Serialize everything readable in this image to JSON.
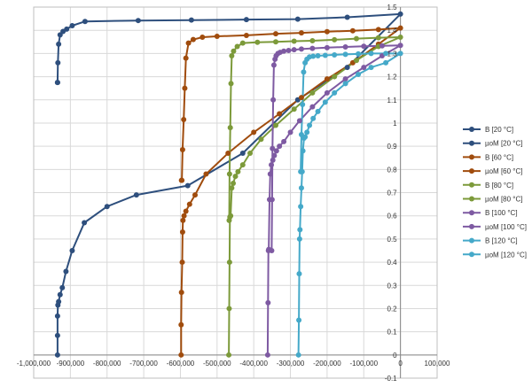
{
  "chart_data": {
    "type": "scatter",
    "title": "",
    "xlabel": "",
    "ylabel": "",
    "xlim": [
      -1000000,
      100000
    ],
    "ylim": [
      -0.1,
      1.5
    ],
    "grid": true,
    "legend_position": "right",
    "x_ticks": [
      "-1,000,000",
      "-900,000",
      "-800,000",
      "-700,000",
      "-600,000",
      "-500,000",
      "-400,000",
      "-300,000",
      "-200,000",
      "-100,000",
      "0",
      "100,000"
    ],
    "y_ticks": [
      "-0.1",
      "0",
      "0.1",
      "0.2",
      "0.3",
      "0.4",
      "0.5",
      "0.6",
      "0.7",
      "0.8",
      "0.9",
      "1",
      "1.1",
      "1.2",
      "1.3",
      "1.4",
      "1.5"
    ],
    "series": [
      {
        "name": "B [20 °C]",
        "color": "#2e4f7d",
        "x": [
          -935000,
          -935000,
          -935000,
          -934000,
          -932000,
          -928000,
          -922000,
          -912000,
          -895000,
          -862000,
          -800000,
          -720000,
          -580000,
          -430000,
          -280000,
          -145000,
          0,
          -145000,
          -280000,
          -420000,
          -570000,
          -715000,
          -860000,
          -895000,
          -910000,
          -920000,
          -928000,
          -932000,
          -934000,
          -935000,
          -935000
        ],
        "y": [
          0,
          0.084,
          0.168,
          0.215,
          0.23,
          0.26,
          0.29,
          0.36,
          0.45,
          0.57,
          0.64,
          0.69,
          0.73,
          0.87,
          1.1,
          1.24,
          1.47,
          1.456,
          1.448,
          1.446,
          1.444,
          1.442,
          1.438,
          1.42,
          1.405,
          1.395,
          1.38,
          1.34,
          1.26,
          1.175,
          1.175
        ]
      },
      {
        "name": "µoM [20 °C]",
        "color": "#2e4f7d",
        "x": [],
        "y": []
      },
      {
        "name": "B [60 °C]",
        "color": "#a04c0d",
        "x": [
          -598000,
          -598000,
          -597000,
          -595000,
          -594000,
          -593000,
          -590000,
          -585000,
          -575000,
          -560000,
          -530000,
          -470000,
          -400000,
          -330000,
          -270000,
          -200000,
          -130000,
          -60000,
          0,
          -60000,
          -130000,
          -200000,
          -270000,
          -340000,
          -420000,
          -500000,
          -540000,
          -565000,
          -578000,
          -585000,
          -588000,
          -591000,
          -594000,
          -596000,
          -597000
        ],
        "y": [
          0,
          0.13,
          0.27,
          0.4,
          0.53,
          0.58,
          0.6,
          0.62,
          0.65,
          0.69,
          0.78,
          0.87,
          0.96,
          1.04,
          1.11,
          1.19,
          1.26,
          1.34,
          1.41,
          1.403,
          1.398,
          1.394,
          1.389,
          1.385,
          1.378,
          1.374,
          1.37,
          1.36,
          1.345,
          1.28,
          1.15,
          1.015,
          0.885,
          0.753,
          0.753
        ]
      },
      {
        "name": "µoM [60 °C]",
        "color": "#a04c0d",
        "x": [],
        "y": []
      },
      {
        "name": "B [80 °C]",
        "color": "#7c9a3a",
        "x": [
          -468000,
          -467000,
          -466000,
          -465000,
          -463000,
          -460000,
          -456000,
          -450000,
          -443000,
          -430000,
          -410000,
          -380000,
          -340000,
          -290000,
          -240000,
          -180000,
          -120000,
          -60000,
          0,
          -60000,
          -120000,
          -180000,
          -240000,
          -290000,
          -340000,
          -390000,
          -430000,
          -445000,
          -455000,
          -460000,
          -462000,
          -464000,
          -466000,
          -467000
        ],
        "y": [
          0,
          0.2,
          0.4,
          0.595,
          0.6,
          0.72,
          0.74,
          0.77,
          0.79,
          0.82,
          0.87,
          0.93,
          0.99,
          1.06,
          1.13,
          1.2,
          1.27,
          1.33,
          1.37,
          1.368,
          1.364,
          1.359,
          1.355,
          1.353,
          1.35,
          1.348,
          1.345,
          1.33,
          1.31,
          1.29,
          1.17,
          0.98,
          0.78,
          0.58
        ]
      },
      {
        "name": "µoM [80 °C]",
        "color": "#7c9a3a",
        "x": [],
        "y": []
      },
      {
        "name": "B [100 °C]",
        "color": "#7e5aa2",
        "x": [
          -362000,
          -361000,
          -360000,
          -359000,
          -357000,
          -355000,
          -352000,
          -348000,
          -344000,
          -338000,
          -330000,
          -318000,
          -300000,
          -275000,
          -240000,
          -200000,
          -150000,
          -100000,
          -50000,
          0,
          -50000,
          -100000,
          -150000,
          -200000,
          -240000,
          -270000,
          -290000,
          -305000,
          -318000,
          -328000,
          -334000,
          -339000,
          -342000,
          -345000,
          -347000,
          -349000,
          -350000,
          -351000
        ],
        "y": [
          0,
          0.225,
          0.45,
          0.455,
          0.67,
          0.78,
          0.82,
          0.84,
          0.86,
          0.88,
          0.9,
          0.92,
          0.96,
          1.01,
          1.07,
          1.13,
          1.19,
          1.24,
          1.29,
          1.335,
          1.333,
          1.331,
          1.328,
          1.325,
          1.322,
          1.319,
          1.316,
          1.313,
          1.31,
          1.305,
          1.3,
          1.29,
          1.275,
          1.25,
          1.1,
          0.89,
          0.67,
          0.45
        ]
      },
      {
        "name": "µoM [100 °C]",
        "color": "#7e5aa2",
        "x": [],
        "y": []
      },
      {
        "name": "B [120 °C]",
        "color": "#45a9c9",
        "x": [
          -278000,
          -277000,
          -276000,
          -275000,
          -274000,
          -272000,
          -270000,
          -268000,
          -266000,
          -263000,
          -260000,
          -255000,
          -248000,
          -238000,
          -225000,
          -205000,
          -180000,
          -150000,
          -115000,
          -80000,
          -40000,
          0,
          -40000,
          -80000,
          -115000,
          -150000,
          -180000,
          -205000,
          -225000,
          -238000,
          -248000,
          -255000,
          -260000,
          -264000,
          -267000,
          -270000,
          -272000
        ],
        "y": [
          0,
          0.15,
          0.35,
          0.5,
          0.54,
          0.64,
          0.72,
          0.79,
          0.88,
          0.935,
          0.94,
          0.96,
          0.99,
          1.02,
          1.05,
          1.09,
          1.13,
          1.17,
          1.21,
          1.24,
          1.26,
          1.3,
          1.3,
          1.3,
          1.298,
          1.296,
          1.294,
          1.292,
          1.29,
          1.288,
          1.285,
          1.275,
          1.26,
          1.22,
          1.08,
          0.95,
          0.79
        ]
      },
      {
        "name": "µoM [120 °C]",
        "color": "#45a9c9",
        "x": [],
        "y": []
      }
    ]
  }
}
